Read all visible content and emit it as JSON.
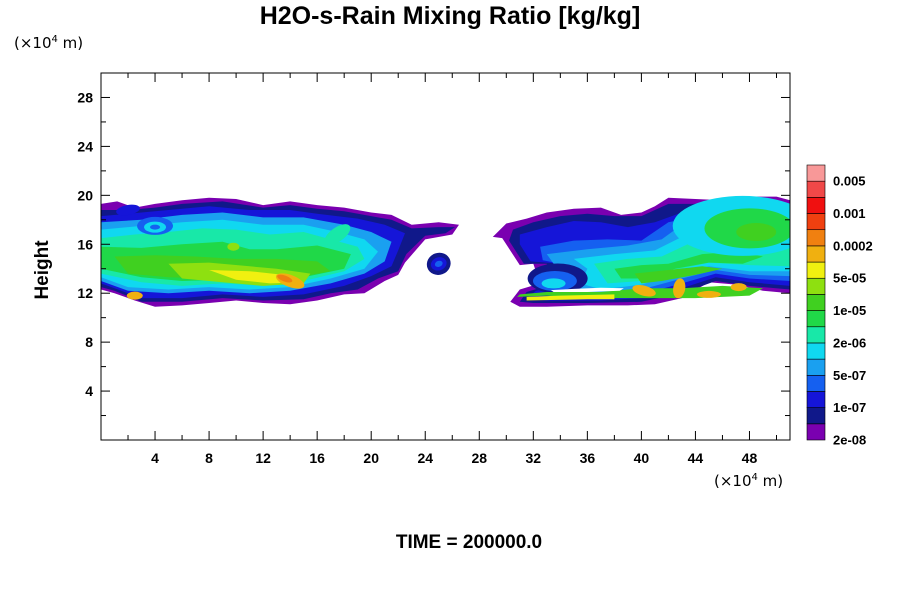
{
  "title": "H2O-s-Rain Mixing Ratio [kg/kg]",
  "y_unit": {
    "prefix": "(×10",
    "exp": "4",
    "suffix": " m)"
  },
  "x_unit": {
    "prefix": "(×10",
    "exp": "4",
    "suffix": " m)"
  },
  "footer": "TIME = 200000.0",
  "chart_data": {
    "type": "heatmap",
    "title": "H2O-s-Rain Mixing Ratio [kg/kg]",
    "ylabel": "Height",
    "xlabel": "",
    "x_unit": "×10^4 m",
    "y_unit": "×10^4 m",
    "xlim": [
      0,
      51
    ],
    "ylim": [
      0,
      30
    ],
    "x_ticks": [
      4,
      8,
      12,
      16,
      20,
      24,
      28,
      32,
      36,
      40,
      44,
      48
    ],
    "y_ticks": [
      4,
      8,
      12,
      16,
      20,
      24,
      28
    ],
    "grid": false,
    "legend": "right",
    "colorbar": {
      "labels": [
        "0.005",
        "0.001",
        "0.0002",
        "5e-05",
        "1e-05",
        "2e-06",
        "5e-07",
        "1e-07",
        "2e-08"
      ],
      "colors": [
        "#7a00b0",
        "#10188a",
        "#1515d8",
        "#1560f0",
        "#1aa0f0",
        "#10d8f0",
        "#18e8a8",
        "#20d848",
        "#40d020",
        "#8ee010",
        "#f0f010",
        "#f0b010",
        "#f08010",
        "#f04010",
        "#f01010",
        "#f04848",
        "#f89898"
      ]
    },
    "regions": [
      {
        "x": [
          0,
          26.5
        ],
        "y": [
          10.8,
          19.8
        ],
        "max_level": "0.0002"
      },
      {
        "x": [
          30.5,
          51
        ],
        "y": [
          11,
          19.8
        ],
        "max_level": "0.0002"
      }
    ],
    "time": "200000.0"
  }
}
